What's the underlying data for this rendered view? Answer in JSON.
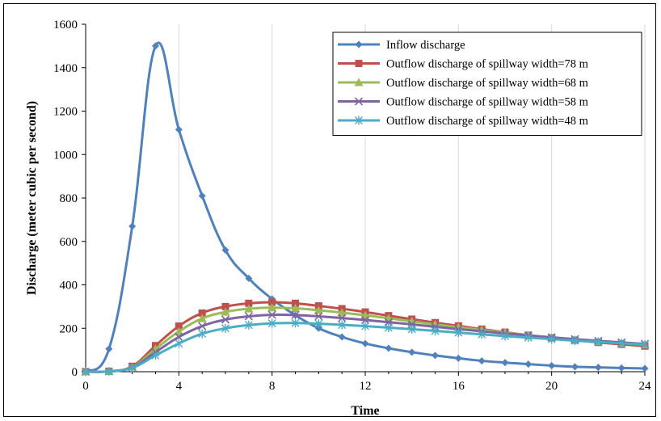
{
  "chart_data": {
    "type": "line",
    "title": "",
    "xlabel": "Time",
    "ylabel": "Discharge (meter cubic per second)",
    "xlim": [
      0,
      24
    ],
    "ylim": [
      0,
      1600
    ],
    "x_ticks": [
      0,
      4,
      8,
      12,
      16,
      20,
      24
    ],
    "y_ticks": [
      0,
      200,
      400,
      600,
      800,
      1000,
      1200,
      1400,
      1600
    ],
    "grid": "vertical",
    "legend_position": "top-right",
    "x": [
      0,
      1,
      2,
      3,
      4,
      5,
      6,
      7,
      8,
      9,
      10,
      11,
      12,
      13,
      14,
      15,
      16,
      17,
      18,
      19,
      20,
      21,
      22,
      23,
      24
    ],
    "series": [
      {
        "name": "Inflow discharge",
        "color": "#4F81BD",
        "marker": "diamond",
        "values": [
          0,
          105,
          670,
          1500,
          1115,
          810,
          560,
          430,
          335,
          260,
          200,
          160,
          130,
          108,
          90,
          75,
          62,
          50,
          42,
          35,
          28,
          23,
          20,
          17,
          15
        ]
      },
      {
        "name": "Outflow discharge of spillway width=78 m",
        "color": "#C0504D",
        "marker": "square",
        "values": [
          0,
          2,
          25,
          120,
          210,
          270,
          300,
          315,
          320,
          315,
          303,
          290,
          275,
          258,
          242,
          226,
          211,
          196,
          182,
          168,
          156,
          145,
          135,
          126,
          118
        ]
      },
      {
        "name": "Outflow discharge of spillway width=68 m",
        "color": "#9BBB59",
        "marker": "triangle",
        "values": [
          0,
          2,
          22,
          105,
          185,
          245,
          275,
          290,
          295,
          292,
          283,
          272,
          260,
          246,
          232,
          218,
          205,
          192,
          180,
          168,
          158,
          148,
          139,
          131,
          124
        ]
      },
      {
        "name": "Outflow discharge of spillway width=58 m",
        "color": "#8064A2",
        "marker": "x",
        "values": [
          0,
          1,
          20,
          90,
          160,
          210,
          240,
          255,
          262,
          261,
          255,
          247,
          238,
          228,
          218,
          207,
          196,
          186,
          176,
          167,
          158,
          150,
          142,
          135,
          128
        ]
      },
      {
        "name": "Outflow discharge of spillway width=48 m",
        "color": "#4BACC6",
        "marker": "asterisk",
        "values": [
          0,
          1,
          18,
          75,
          130,
          175,
          200,
          215,
          223,
          224,
          221,
          216,
          210,
          203,
          196,
          188,
          180,
          172,
          164,
          157,
          150,
          143,
          137,
          131,
          125
        ]
      }
    ]
  }
}
